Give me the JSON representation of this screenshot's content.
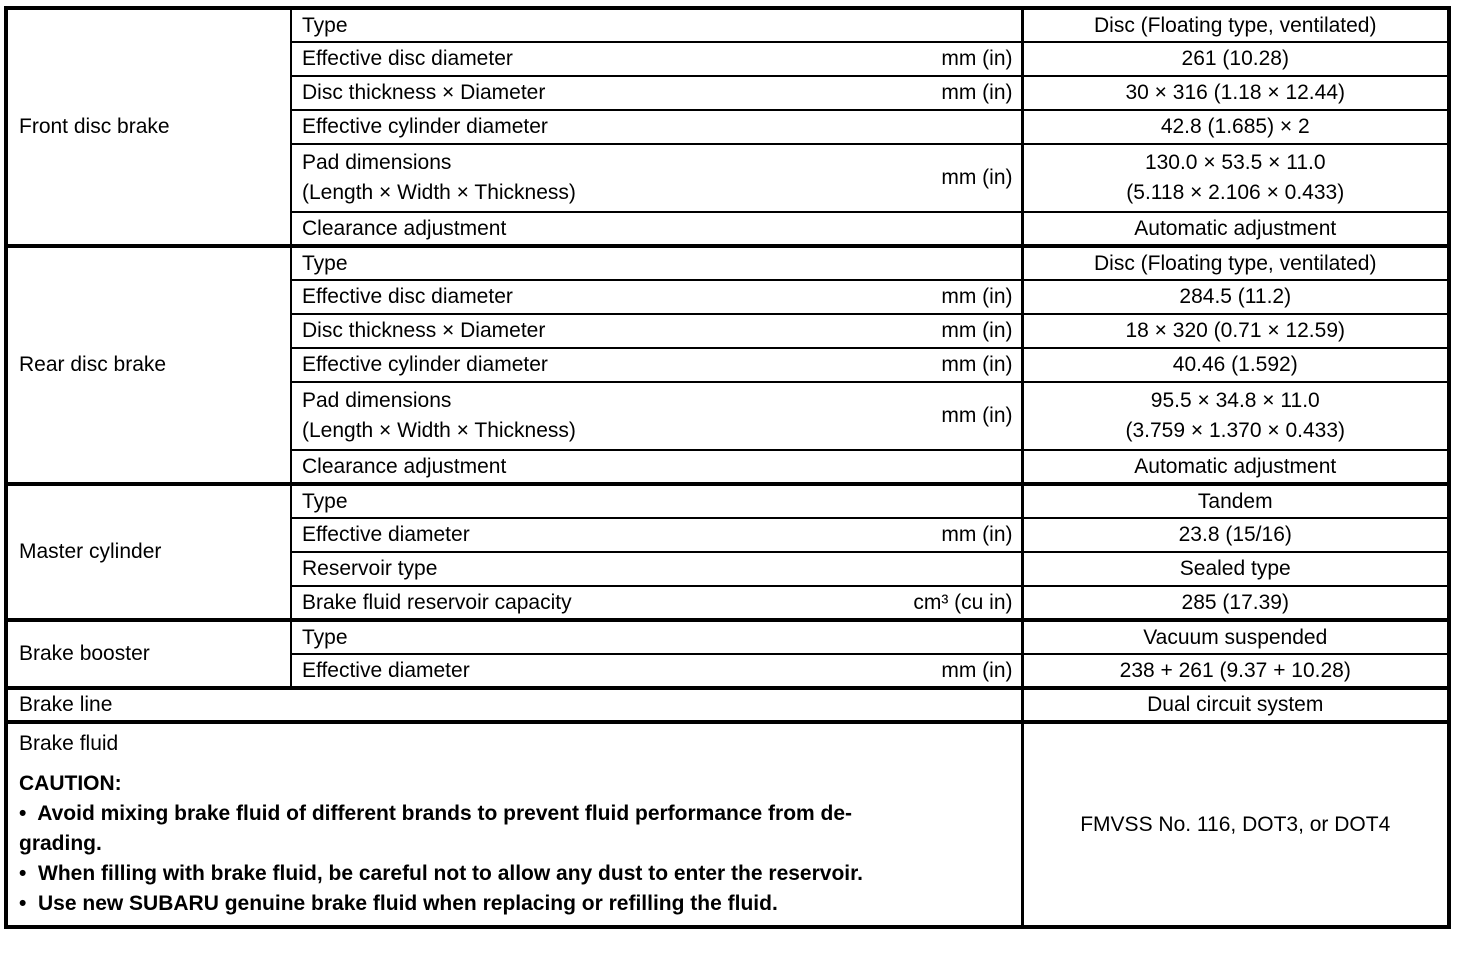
{
  "sections": [
    {
      "category": "Front disc brake",
      "rows": [
        {
          "label": "Type",
          "unit": "",
          "value": "Disc (Floating type, ventilated)"
        },
        {
          "label": "Effective disc diameter",
          "unit": "mm (in)",
          "value": "261 (10.28)"
        },
        {
          "label": "Disc thickness × Diameter",
          "unit": "mm (in)",
          "value": "30 × 316 (1.18 × 12.44)"
        },
        {
          "label": "Effective cylinder diameter",
          "unit": "",
          "value": "42.8 (1.685) × 2"
        },
        {
          "label": "Pad dimensions\n(Length × Width × Thickness)",
          "unit": "mm (in)",
          "value": "130.0 × 53.5 × 11.0\n(5.118 × 2.106 × 0.433)"
        },
        {
          "label": "Clearance adjustment",
          "unit": "",
          "value": "Automatic adjustment"
        }
      ]
    },
    {
      "category": "Rear disc brake",
      "rows": [
        {
          "label": "Type",
          "unit": "",
          "value": "Disc (Floating type, ventilated)"
        },
        {
          "label": "Effective disc diameter",
          "unit": "mm (in)",
          "value": "284.5 (11.2)"
        },
        {
          "label": "Disc thickness × Diameter",
          "unit": "mm (in)",
          "value": "18 × 320 (0.71 × 12.59)"
        },
        {
          "label": "Effective cylinder diameter",
          "unit": "mm (in)",
          "value": "40.46 (1.592)"
        },
        {
          "label": "Pad dimensions\n(Length × Width × Thickness)",
          "unit": "mm (in)",
          "value": "95.5 × 34.8 × 11.0\n(3.759 × 1.370 × 0.433)"
        },
        {
          "label": "Clearance adjustment",
          "unit": "",
          "value": "Automatic adjustment"
        }
      ]
    },
    {
      "category": "Master cylinder",
      "rows": [
        {
          "label": "Type",
          "unit": "",
          "value": "Tandem"
        },
        {
          "label": "Effective diameter",
          "unit": "mm (in)",
          "value": "23.8 (15/16)"
        },
        {
          "label": "Reservoir type",
          "unit": "",
          "value": "Sealed type"
        },
        {
          "label": "Brake fluid reservoir capacity",
          "unit": "cm³ (cu in)",
          "value": "285 (17.39)"
        }
      ]
    },
    {
      "category": "Brake booster",
      "rows": [
        {
          "label": "Type",
          "unit": "",
          "value": "Vacuum suspended"
        },
        {
          "label": "Effective diameter",
          "unit": "mm (in)",
          "value": "238 + 261 (9.37 + 10.28)"
        }
      ]
    }
  ],
  "brake_line": {
    "label": "Brake line",
    "value": "Dual circuit system"
  },
  "brake_fluid": {
    "label": "Brake fluid",
    "caution_title": "CAUTION:",
    "bullets": [
      "•  Avoid mixing brake fluid of different brands to prevent fluid performance from de-\ngrading.",
      "•  When filling with brake fluid, be careful not to allow any dust to enter the reservoir.",
      "•  Use new SUBARU genuine brake fluid when replacing or refilling the fluid."
    ],
    "value": "FMVSS No. 116, DOT3, or DOT4"
  }
}
